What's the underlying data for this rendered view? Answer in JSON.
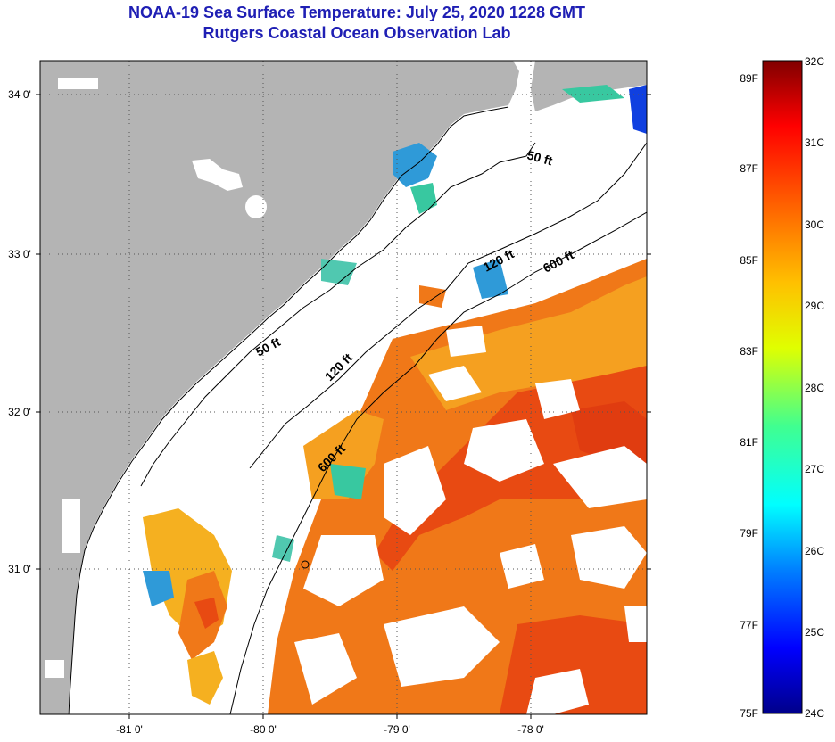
{
  "title": "NOAA-19 Sea Surface Temperature:  July 25, 2020 1228 GMT",
  "subtitle": "Rutgers Coastal Ocean Observation Lab",
  "lon_labels": [
    "-81 0'",
    "-80 0'",
    "-79 0'",
    "-78 0'"
  ],
  "lat_labels": [
    "34 0'",
    "33 0'",
    "32 0'",
    "31 0'"
  ],
  "contours": {
    "c50_a": "50 ft",
    "c50_b": "50 ft",
    "c120_a": "120 ft",
    "c120_b": "120 ft",
    "c600_a": "600 ft",
    "c600_b": "600 ft"
  },
  "colorbar": {
    "f_labels": [
      "89F",
      "87F",
      "85F",
      "83F",
      "81F",
      "79F",
      "77F",
      "75F"
    ],
    "c_labels": [
      "32C",
      "31C",
      "30C",
      "29C",
      "28C",
      "27C",
      "26C",
      "25C",
      "24C"
    ]
  },
  "colors": {
    "land": "#b4b4b4",
    "ocean": "#ffffff",
    "title": "#1f1fb4",
    "sst_warm": "#f06a14",
    "sst_hot": "#e03c10",
    "sst_mid": "#f5b020",
    "sst_cool": "#2f9ad8"
  }
}
